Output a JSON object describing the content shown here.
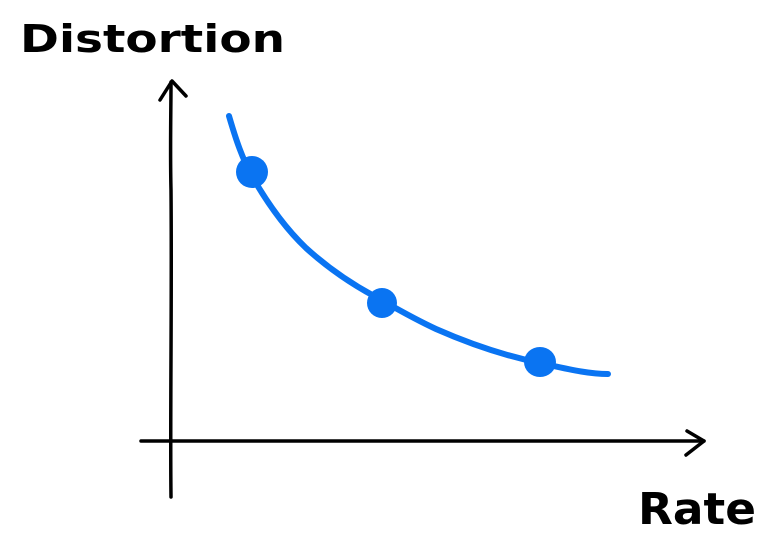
{
  "diagram": {
    "y_axis_label": "Distortion",
    "x_axis_label": "Rate",
    "curve_color": "#0a74f2",
    "axis_color": "#000000",
    "curve_shape": "decreasing convex trade-off curve",
    "marked_points": 3
  }
}
